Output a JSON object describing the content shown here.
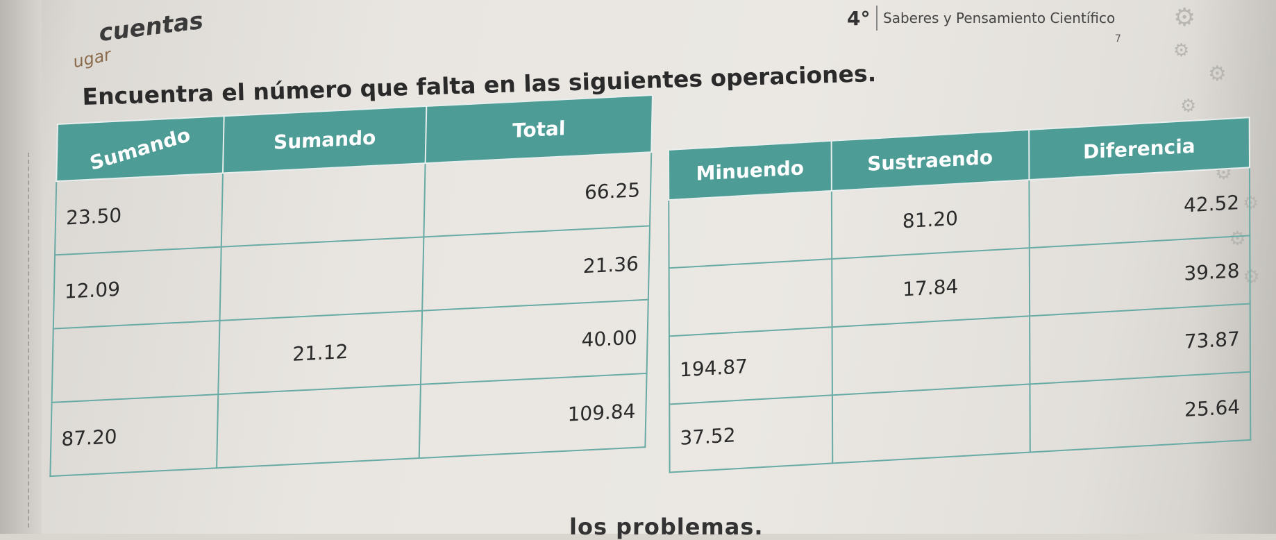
{
  "header": {
    "section_title": "cuentas",
    "section_title_pre": "ugar",
    "grade": "4°",
    "subject": "Saberes y Pensamiento Científico",
    "page_marker": "7"
  },
  "instruction": "Encuentra el número que falta en las siguientes operaciones.",
  "addition_table": {
    "headers": [
      "Sumando",
      "Sumando",
      "Total"
    ],
    "rows": [
      [
        "23.50",
        "",
        "66.25"
      ],
      [
        "12.09",
        "",
        "21.36"
      ],
      [
        "",
        "21.12",
        "40.00"
      ],
      [
        "87.20",
        "",
        "109.84"
      ]
    ]
  },
  "subtraction_table": {
    "headers": [
      "Minuendo",
      "Sustraendo",
      "Diferencia"
    ],
    "rows": [
      [
        "",
        "81.20",
        "42.52"
      ],
      [
        "",
        "17.84",
        "39.28"
      ],
      [
        "194.87",
        "",
        "73.87"
      ],
      [
        "37.52",
        "",
        "25.64"
      ]
    ]
  },
  "footer_text": "los problemas.",
  "icons": [
    "gear-icon"
  ],
  "colors": {
    "table_header": "#4d9c96",
    "table_border": "#68aaa4"
  }
}
